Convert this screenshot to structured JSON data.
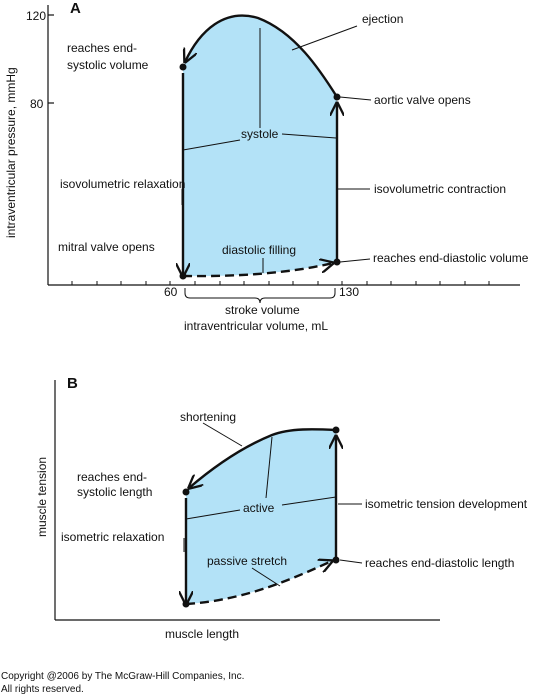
{
  "panel_a": {
    "letter": "A",
    "ylabel": "intraventricular pressure, mmHg",
    "xlabel": "intraventricular volume, mL",
    "y_ticks": [
      "120",
      "80"
    ],
    "x_ticks": [
      "60",
      "130"
    ],
    "stroke_volume": "stroke volume",
    "labels": {
      "ejection": "ejection",
      "reaches_end_systolic_1": "reaches end-",
      "reaches_end_systolic_2": "systolic volume",
      "aortic_valve_opens": "aortic valve opens",
      "systole": "systole",
      "isovolumetric_relaxation": "isovolumetric relaxation",
      "isovolumetric_contraction": "isovolumetric contraction",
      "mitral_valve_opens": "mitral valve opens",
      "diastolic_filling": "diastolic filling",
      "reaches_end_diastolic": "reaches end-diastolic volume"
    }
  },
  "panel_b": {
    "letter": "B",
    "ylabel": "muscle tension",
    "xlabel": "muscle length",
    "labels": {
      "shortening": "shortening",
      "reaches_end_systolic_1": "reaches end-",
      "reaches_end_systolic_2": "systolic length",
      "active": "active",
      "isometric_tension": "isometric tension development",
      "isometric_relaxation": "isometric relaxation",
      "passive_stretch": "passive stretch",
      "reaches_end_diastolic": "reaches end-diastolic length"
    }
  },
  "copyright_1": "Copyright @2006 by The McGraw-Hill Companies, Inc.",
  "copyright_2": "All rights reserved.",
  "colors": {
    "fill": "#b3e2f7",
    "stroke": "#111111"
  }
}
